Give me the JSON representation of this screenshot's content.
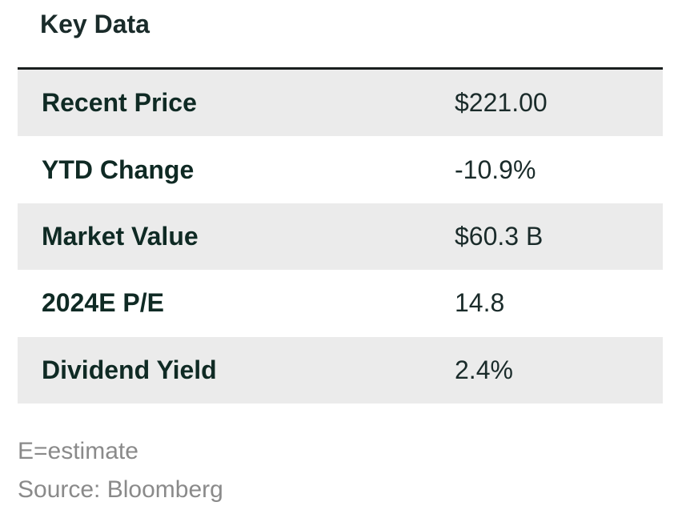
{
  "title": "Key Data",
  "rows": [
    {
      "label": "Recent Price",
      "value": "$221.00"
    },
    {
      "label": "YTD Change",
      "value": "-10.9%"
    },
    {
      "label": "Market Value",
      "value": "$60.3 B"
    },
    {
      "label": "2024E P/E",
      "value": "14.8"
    },
    {
      "label": "Dividend Yield",
      "value": "2.4%"
    }
  ],
  "footnotes": {
    "estimate": "E=estimate",
    "source": "Source: Bloomberg"
  }
}
